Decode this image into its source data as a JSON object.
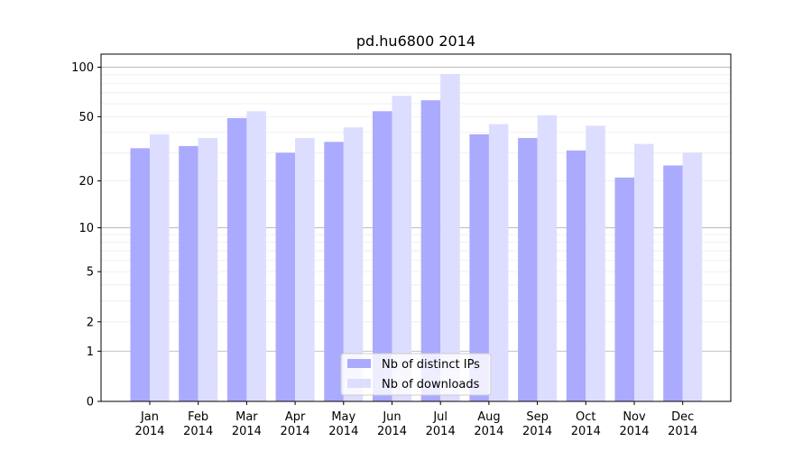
{
  "chart_data": {
    "type": "bar",
    "title": "pd.hu6800 2014",
    "xlabel": "",
    "ylabel": "",
    "y_scale": "log(1+y)",
    "ylim": [
      0,
      120
    ],
    "y_ticks": [
      0,
      1,
      2,
      5,
      10,
      20,
      50,
      100
    ],
    "y_tick_labels": [
      "0",
      "1",
      "2",
      "5",
      "10",
      "20",
      "50",
      "100"
    ],
    "grid": true,
    "legend_position": "bottom-center",
    "categories": [
      {
        "month": "Jan",
        "year": "2014"
      },
      {
        "month": "Feb",
        "year": "2014"
      },
      {
        "month": "Mar",
        "year": "2014"
      },
      {
        "month": "Apr",
        "year": "2014"
      },
      {
        "month": "May",
        "year": "2014"
      },
      {
        "month": "Jun",
        "year": "2014"
      },
      {
        "month": "Jul",
        "year": "2014"
      },
      {
        "month": "Aug",
        "year": "2014"
      },
      {
        "month": "Sep",
        "year": "2014"
      },
      {
        "month": "Oct",
        "year": "2014"
      },
      {
        "month": "Nov",
        "year": "2014"
      },
      {
        "month": "Dec",
        "year": "2014"
      }
    ],
    "series": [
      {
        "name": "Nb of distinct IPs",
        "color": "#aaaaff",
        "values": [
          32,
          33,
          49,
          30,
          35,
          54,
          63,
          39,
          37,
          31,
          21,
          25
        ]
      },
      {
        "name": "Nb of downloads",
        "color": "#ddddff",
        "values": [
          39,
          37,
          54,
          37,
          43,
          67,
          91,
          45,
          51,
          44,
          34,
          30
        ]
      }
    ]
  }
}
